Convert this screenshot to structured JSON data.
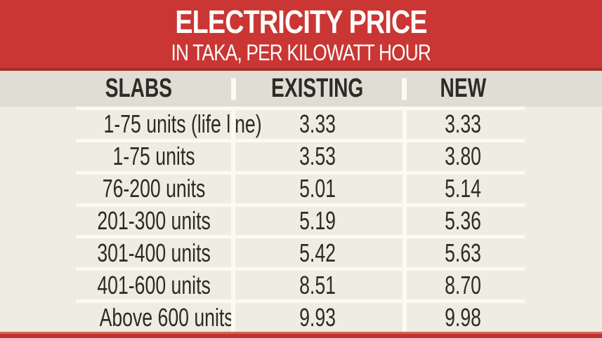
{
  "banner": {
    "title": "ELECTRICITY PRICE",
    "subtitle": "IN TAKA, PER KILOWATT HOUR"
  },
  "table": {
    "columns": [
      "SLABS",
      "EXISTING",
      "NEW"
    ],
    "rows": [
      {
        "slab": "1-75 units (life line)",
        "existing": "3.33",
        "new": "3.33"
      },
      {
        "slab": "1-75 units",
        "existing": "3.53",
        "new": "3.80"
      },
      {
        "slab": "76-200 units",
        "existing": "5.01",
        "new": "5.14"
      },
      {
        "slab": "201-300 units",
        "existing": "5.19",
        "new": "5.36"
      },
      {
        "slab": "301-400 units",
        "existing": "5.42",
        "new": "5.63"
      },
      {
        "slab": "401-600 units",
        "existing": "8.51",
        "new": "8.70"
      },
      {
        "slab": "Above 600 units",
        "existing": "9.93",
        "new": "9.98"
      }
    ]
  },
  "chart_data": {
    "type": "table",
    "title": "ELECTRICITY PRICE",
    "subtitle": "IN TAKA, PER KILOWATT HOUR",
    "unit": "Taka per kilowatt hour",
    "columns": [
      "SLABS",
      "EXISTING",
      "NEW"
    ],
    "categories": [
      "1-75 units (life line)",
      "1-75 units",
      "76-200 units",
      "201-300 units",
      "301-400 units",
      "401-600 units",
      "Above 600 units"
    ],
    "series": [
      {
        "name": "EXISTING",
        "values": [
          3.33,
          3.53,
          5.01,
          5.19,
          5.42,
          8.51,
          9.93
        ]
      },
      {
        "name": "NEW",
        "values": [
          3.33,
          3.8,
          5.14,
          5.36,
          5.63,
          8.7,
          9.98
        ]
      }
    ]
  },
  "colors": {
    "banner_red": "#c93634",
    "banner_edge": "#a03028",
    "header_bg": "#e0ded4",
    "row_bg": "#efede3",
    "grid_line": "#fbfaf3",
    "text": "#2e2a25",
    "strip_red": "#c0342f",
    "strip_edge": "#d5685c",
    "title_text": "#fdfcfa"
  }
}
